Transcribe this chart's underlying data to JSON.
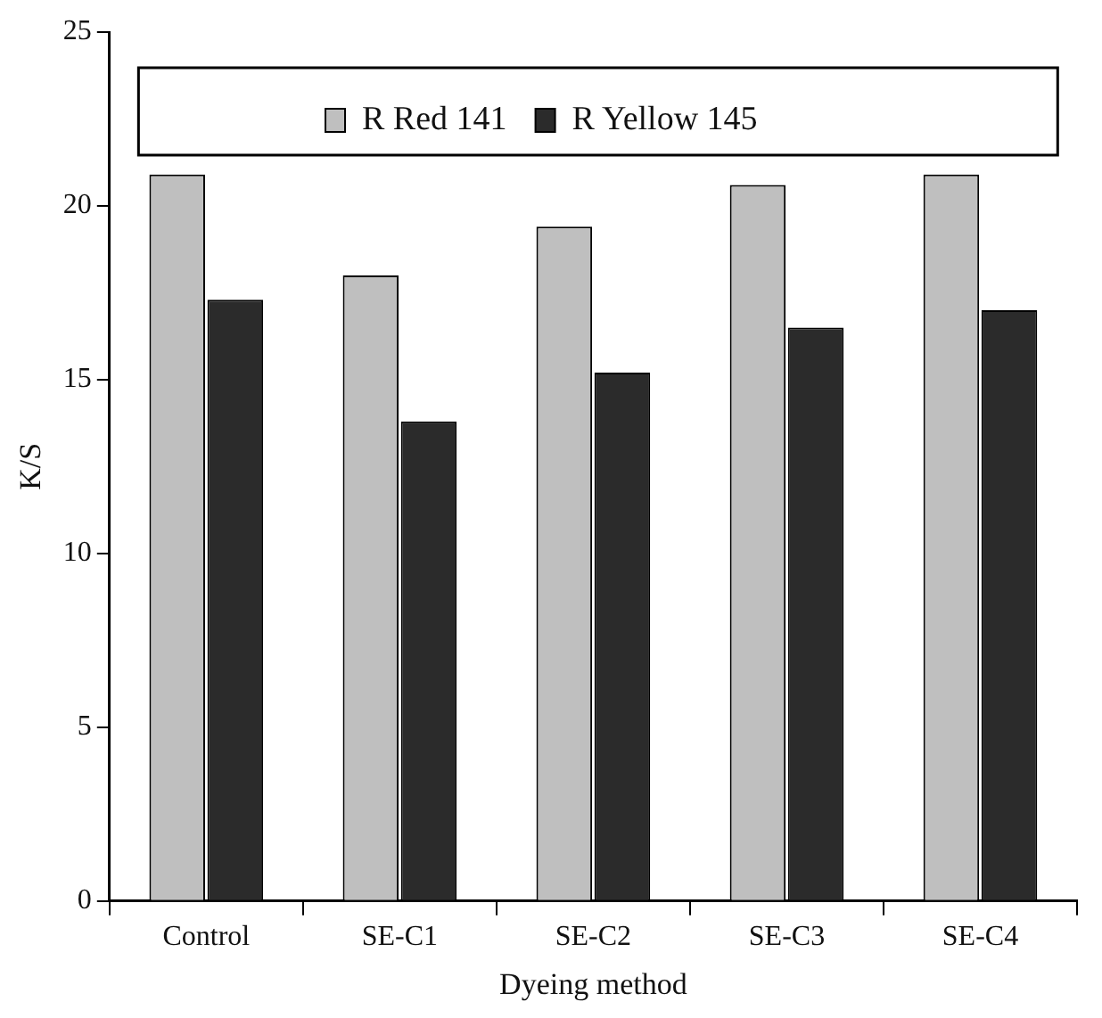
{
  "chart_data": {
    "type": "bar",
    "xlabel": "Dyeing method",
    "ylabel": "K/S",
    "categories": [
      "Control",
      "SE-C1",
      "SE-C2",
      "SE-C3",
      "SE-C4"
    ],
    "series": [
      {
        "name": "R Red 141",
        "color": "#bfbfbf",
        "values": [
          20.9,
          18.0,
          19.4,
          20.6,
          20.9
        ]
      },
      {
        "name": "R Yellow 145",
        "color": "#2b2b2b",
        "values": [
          17.3,
          13.8,
          15.2,
          16.5,
          17.0
        ]
      }
    ],
    "ylim": [
      0,
      25
    ],
    "yticks": [
      0,
      5,
      10,
      15,
      20,
      25
    ],
    "grid": false,
    "legend": "top"
  }
}
